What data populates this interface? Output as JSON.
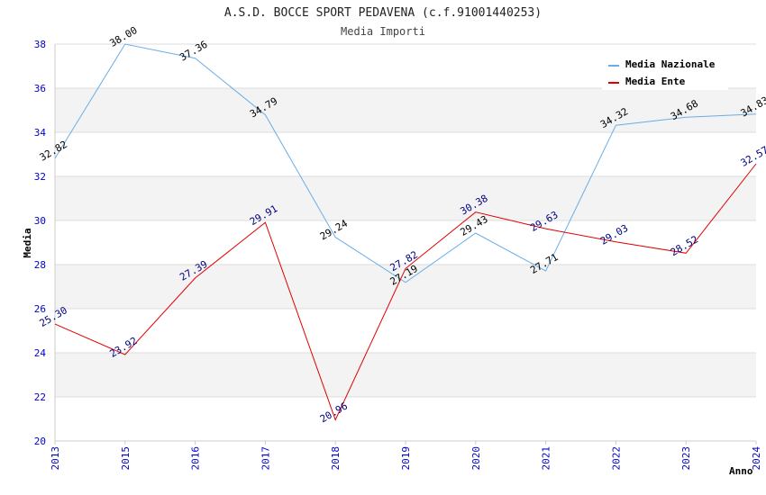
{
  "chart_data": {
    "type": "line",
    "title": "A.S.D. BOCCE SPORT PEDAVENA (c.f.91001440253)",
    "subtitle": "Media Importi",
    "xlabel": "Anno",
    "ylabel": "Media",
    "categories": [
      "2013",
      "2015",
      "2016",
      "2017",
      "2018",
      "2019",
      "2020",
      "2021",
      "2022",
      "2023",
      "2024"
    ],
    "ylim": [
      20,
      38
    ],
    "yticks": [
      "20",
      "22",
      "24",
      "26",
      "28",
      "30",
      "32",
      "34",
      "36",
      "38"
    ],
    "grid": true,
    "legend_position": "top-right",
    "series": [
      {
        "name": "Media Nazionale",
        "color": "#6aaee8",
        "label_color": "#000000",
        "values": [
          32.82,
          38.0,
          37.36,
          34.79,
          29.24,
          27.19,
          29.43,
          27.71,
          34.32,
          34.68,
          34.83
        ],
        "labels": [
          "32.82",
          "38.00",
          "37.36",
          "34.79",
          "29.24",
          "27.19",
          "29.43",
          "27.71",
          "34.32",
          "34.68",
          "34.83"
        ]
      },
      {
        "name": "Media Ente",
        "color": "#e00000",
        "label_color": "#000080",
        "values": [
          25.3,
          23.92,
          27.39,
          29.91,
          20.96,
          27.82,
          30.38,
          29.63,
          29.03,
          28.52,
          32.57
        ],
        "labels": [
          "25.30",
          "23.92",
          "27.39",
          "29.91",
          "20.96",
          "27.82",
          "30.38",
          "29.63",
          "29.03",
          "28.52",
          "32.57"
        ]
      }
    ]
  }
}
